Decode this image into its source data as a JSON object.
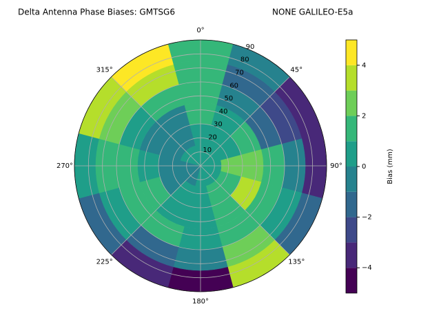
{
  "chart_data": {
    "type": "polar-contour",
    "title": "Delta Antenna Phase Biases: GMTSG6",
    "subtitle": "NONE GALILEO-E5a",
    "colorbar_label": "Bias (mm)",
    "rlim": [
      0,
      90
    ],
    "rticks": [
      10,
      20,
      30,
      40,
      50,
      60,
      70,
      80,
      90
    ],
    "thetaticks": [
      {
        "value": 0,
        "label": "0°"
      },
      {
        "value": 45,
        "label": "45°"
      },
      {
        "value": 90,
        "label": "90°"
      },
      {
        "value": 135,
        "label": "135°"
      },
      {
        "value": 180,
        "label": "180°"
      },
      {
        "value": 225,
        "label": "225°"
      },
      {
        "value": 270,
        "label": "270°"
      },
      {
        "value": 315,
        "label": "315°"
      }
    ],
    "grid": true,
    "azimuths": [
      0,
      30,
      60,
      90,
      120,
      150,
      180,
      210,
      240,
      270,
      300,
      330
    ],
    "zeniths": [
      7.5,
      22.5,
      37.5,
      52.5,
      67.5,
      82.5
    ],
    "values": [
      [
        0,
        0.5,
        1,
        1.5,
        1,
        1.5
      ],
      [
        0,
        0.5,
        0,
        -1,
        -2,
        -1
      ],
      [
        0,
        0.5,
        1,
        -2,
        -3,
        -3.5
      ],
      [
        0.5,
        2,
        2.5,
        1,
        -1,
        -4
      ],
      [
        0.5,
        1.5,
        3,
        1.5,
        0,
        -2
      ],
      [
        0,
        1,
        1.5,
        1,
        2,
        3.5
      ],
      [
        0,
        0.5,
        0.5,
        0,
        -1,
        -4.5
      ],
      [
        -0.5,
        0,
        0.5,
        1,
        -2,
        -4
      ],
      [
        -0.5,
        -1,
        1.5,
        1,
        0,
        -2
      ],
      [
        -0.5,
        -1,
        0,
        1,
        1,
        0.5
      ],
      [
        0,
        -1,
        -0.5,
        0,
        2,
        3
      ],
      [
        0,
        -1,
        -0.5,
        1,
        3,
        4.5
      ]
    ],
    "levels": [
      -5,
      -4,
      -3,
      -2,
      -1,
      0,
      1,
      2,
      3,
      4,
      5
    ],
    "colors": [
      "#440154",
      "#482878",
      "#3e4989",
      "#31688e",
      "#26828e",
      "#1f9e89",
      "#35b779",
      "#6ece58",
      "#b5de2b",
      "#fde725"
    ],
    "clim": [
      -5,
      5
    ],
    "cticks": [
      {
        "value": -4,
        "label": "−4"
      },
      {
        "value": -2,
        "label": "−2"
      },
      0,
      2,
      4
    ]
  }
}
